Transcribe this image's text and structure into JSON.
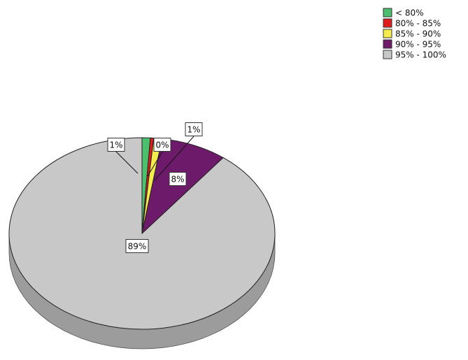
{
  "chart_data": {
    "type": "pie",
    "style": "3d-pie",
    "legend_position": "top-right",
    "slices": [
      {
        "label": "< 80%",
        "value": 1,
        "value_label": "1%",
        "color": "#4dbd6e"
      },
      {
        "label": "80% - 85%",
        "value": 0.4,
        "value_label": "0%",
        "color": "#e01b1b"
      },
      {
        "label": "85% - 90%",
        "value": 1,
        "value_label": "1%",
        "color": "#f4ec4c"
      },
      {
        "label": "90% - 95%",
        "value": 8,
        "value_label": "8%",
        "color": "#6d1a6b"
      },
      {
        "label": "95% - 100%",
        "value": 89,
        "value_label": "89%",
        "color": "#c8c8c8"
      }
    ]
  }
}
